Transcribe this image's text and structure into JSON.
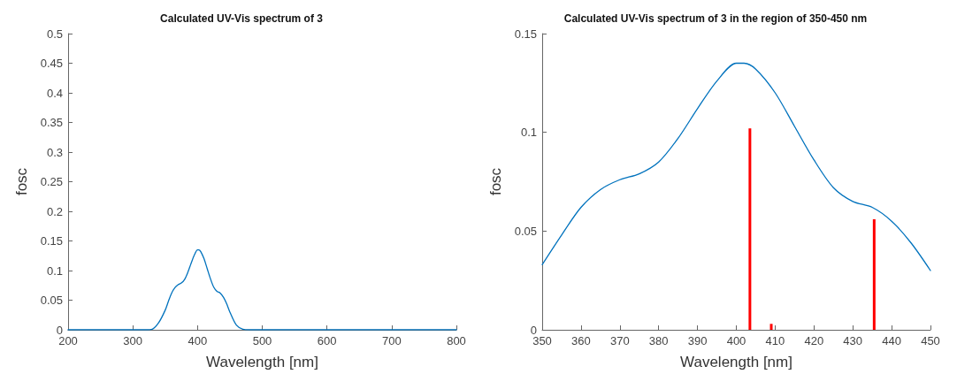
{
  "chart_data": [
    {
      "type": "line",
      "title": "Calculated UV-Vis spectrum of 3",
      "xlabel": "Wavelength [nm]",
      "ylabel": "fosc",
      "xlim": [
        200,
        800
      ],
      "xticks": [
        200,
        300,
        400,
        500,
        600,
        700,
        800
      ],
      "ylim": [
        0,
        0.5
      ],
      "yticks": [
        0,
        0.05,
        0.1,
        0.15,
        0.2,
        0.25,
        0.3,
        0.35,
        0.4,
        0.45,
        0.5
      ],
      "grid": false,
      "marker": "none",
      "series": [
        {
          "color": "#0072bd",
          "x": [
            200,
            320,
            330,
            340,
            350,
            355,
            360,
            365,
            370,
            375,
            380,
            385,
            390,
            395,
            400,
            402,
            405,
            410,
            415,
            420,
            425,
            430,
            435,
            440,
            445,
            450,
            460,
            470,
            480,
            800
          ],
          "values": [
            0,
            0,
            0.001,
            0.012,
            0.033,
            0.048,
            0.062,
            0.071,
            0.076,
            0.079,
            0.085,
            0.097,
            0.112,
            0.126,
            0.135,
            0.135,
            0.132,
            0.12,
            0.103,
            0.086,
            0.072,
            0.065,
            0.062,
            0.055,
            0.044,
            0.03,
            0.008,
            0.001,
            0,
            0
          ]
        }
      ]
    },
    {
      "type": "line",
      "title": "Calculated UV-Vis spectrum of 3 in the region of 350-450 nm",
      "xlabel": "Wavelength [nm]",
      "ylabel": "fosc",
      "xlim": [
        350,
        450
      ],
      "xticks": [
        350,
        360,
        370,
        380,
        390,
        400,
        410,
        420,
        430,
        440,
        450
      ],
      "ylim": [
        0,
        0.15
      ],
      "yticks": [
        0,
        0.05,
        0.1,
        0.15
      ],
      "grid": false,
      "marker": "none",
      "series": [
        {
          "color": "#0072bd",
          "x": [
            350,
            355,
            360,
            365,
            370,
            375,
            380,
            385,
            390,
            395,
            400,
            402,
            405,
            410,
            415,
            420,
            425,
            430,
            435,
            440,
            445,
            450
          ],
          "values": [
            0.033,
            0.048,
            0.062,
            0.071,
            0.076,
            0.079,
            0.085,
            0.097,
            0.112,
            0.126,
            0.135,
            0.135,
            0.132,
            0.12,
            0.103,
            0.086,
            0.072,
            0.065,
            0.062,
            0.055,
            0.044,
            0.03
          ]
        },
        {
          "type": "bar",
          "color": "#ff0000",
          "x": [
            403.5,
            409,
            435.5
          ],
          "values": [
            0.102,
            0.003,
            0.056
          ]
        }
      ]
    }
  ]
}
